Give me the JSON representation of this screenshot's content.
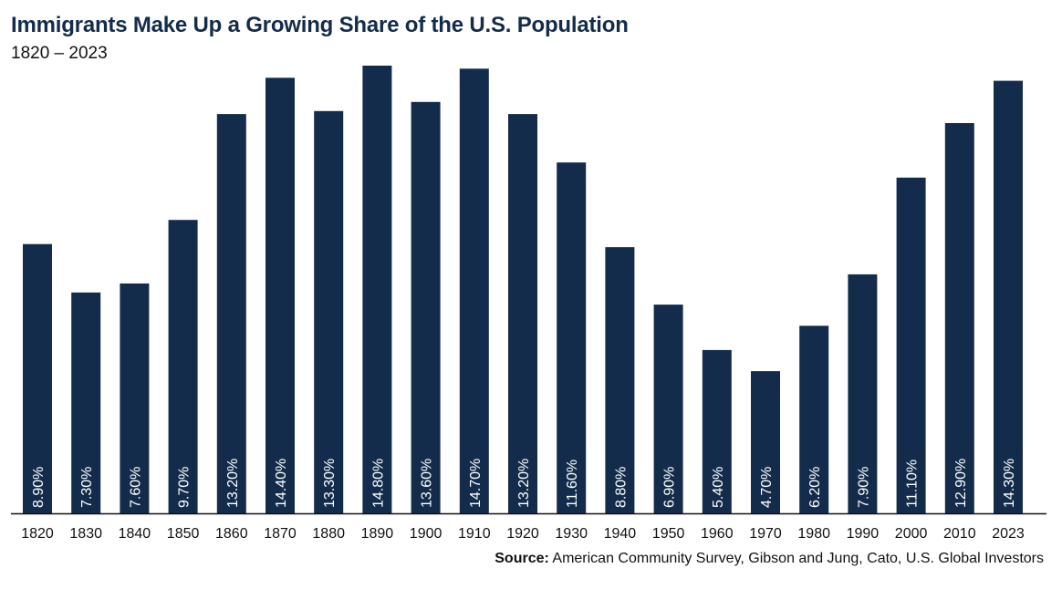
{
  "colors": {
    "bar": "#132c4c",
    "title": "#132c4c",
    "axis": "#111111",
    "label": "#ffffff"
  },
  "chart_data": {
    "type": "bar",
    "title": "Immigrants Make Up a Growing Share of the U.S. Population",
    "subtitle": "1820 – 2023",
    "categories": [
      "1820",
      "1830",
      "1840",
      "1850",
      "1860",
      "1870",
      "1880",
      "1890",
      "1900",
      "1910",
      "1920",
      "1930",
      "1940",
      "1950",
      "1960",
      "1970",
      "1980",
      "1990",
      "2000",
      "2010",
      "2023"
    ],
    "values": [
      8.9,
      7.3,
      7.6,
      9.7,
      13.2,
      14.4,
      13.3,
      14.8,
      13.6,
      14.7,
      13.2,
      11.6,
      8.8,
      6.9,
      5.4,
      4.7,
      6.2,
      7.9,
      11.1,
      12.9,
      14.3
    ],
    "value_labels": [
      "8.90%",
      "7.30%",
      "7.60%",
      "9.70%",
      "13.20%",
      "14.40%",
      "13.30%",
      "14.80%",
      "13.60%",
      "14.70%",
      "13.20%",
      "11.60%",
      "8.80%",
      "6.90%",
      "5.40%",
      "4.70%",
      "6.20%",
      "7.90%",
      "11.10%",
      "12.90%",
      "14.30%"
    ],
    "xlabel": "",
    "ylabel": "",
    "ylim": [
      0,
      14.8
    ],
    "grid": false,
    "legend": "none"
  },
  "source": {
    "label": "Source:",
    "text": "American Community Survey, Gibson and Jung, Cato, U.S. Global Investors"
  }
}
